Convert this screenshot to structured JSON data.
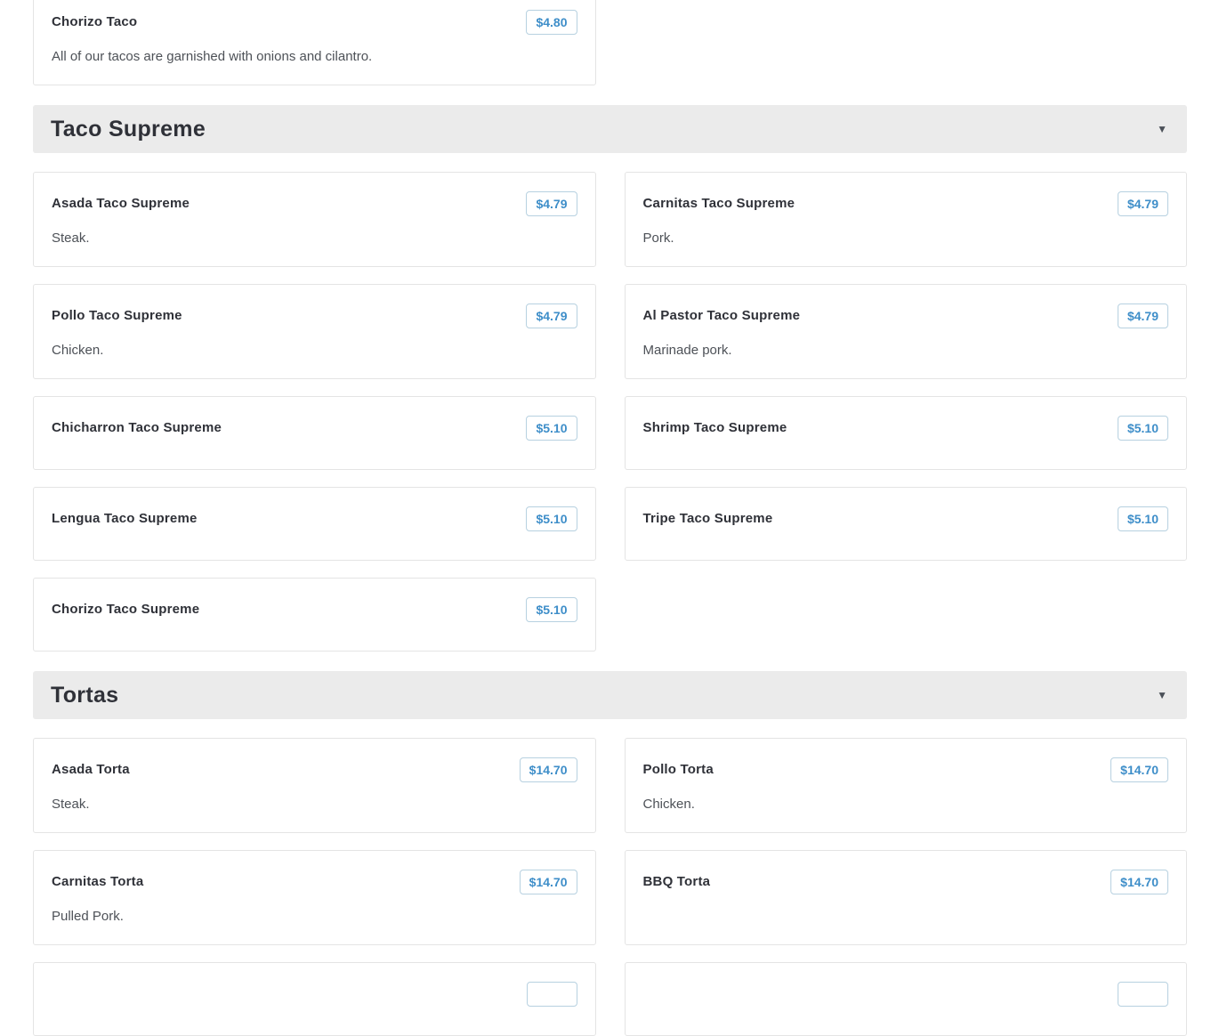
{
  "colors": {
    "price_text": "#3e8ec9",
    "price_border": "#b7d1e0",
    "card_border": "#e4e4e4",
    "section_header_bg": "#ebebeb",
    "title_text": "#2f3138",
    "description_text": "#4d5157"
  },
  "menu": {
    "leading_item": {
      "name": "Chorizo Taco",
      "price": "$4.80",
      "description": "All of our tacos are garnished with onions and cilantro."
    },
    "sections": [
      {
        "title": "Taco Supreme",
        "collapse_icon": "▼",
        "items": [
          {
            "name": "Asada Taco Supreme",
            "price": "$4.79",
            "description": "Steak."
          },
          {
            "name": "Carnitas Taco Supreme",
            "price": "$4.79",
            "description": "Pork."
          },
          {
            "name": "Pollo Taco Supreme",
            "price": "$4.79",
            "description": "Chicken."
          },
          {
            "name": "Al Pastor Taco Supreme",
            "price": "$4.79",
            "description": "Marinade pork."
          },
          {
            "name": "Chicharron Taco Supreme",
            "price": "$5.10",
            "description": ""
          },
          {
            "name": "Shrimp Taco Supreme",
            "price": "$5.10",
            "description": ""
          },
          {
            "name": "Lengua Taco Supreme",
            "price": "$5.10",
            "description": ""
          },
          {
            "name": "Tripe Taco Supreme",
            "price": "$5.10",
            "description": ""
          },
          {
            "name": "Chorizo Taco Supreme",
            "price": "$5.10",
            "description": ""
          }
        ]
      },
      {
        "title": "Tortas",
        "collapse_icon": "▼",
        "items": [
          {
            "name": "Asada Torta",
            "price": "$14.70",
            "description": "Steak."
          },
          {
            "name": "Pollo Torta",
            "price": "$14.70",
            "description": "Chicken."
          },
          {
            "name": "Carnitas Torta",
            "price": "$14.70",
            "description": "Pulled Pork."
          },
          {
            "name": "BBQ Torta",
            "price": "$14.70",
            "description": ""
          },
          {
            "name": "",
            "price": "",
            "description": ""
          },
          {
            "name": "",
            "price": "",
            "description": ""
          }
        ]
      }
    ]
  }
}
